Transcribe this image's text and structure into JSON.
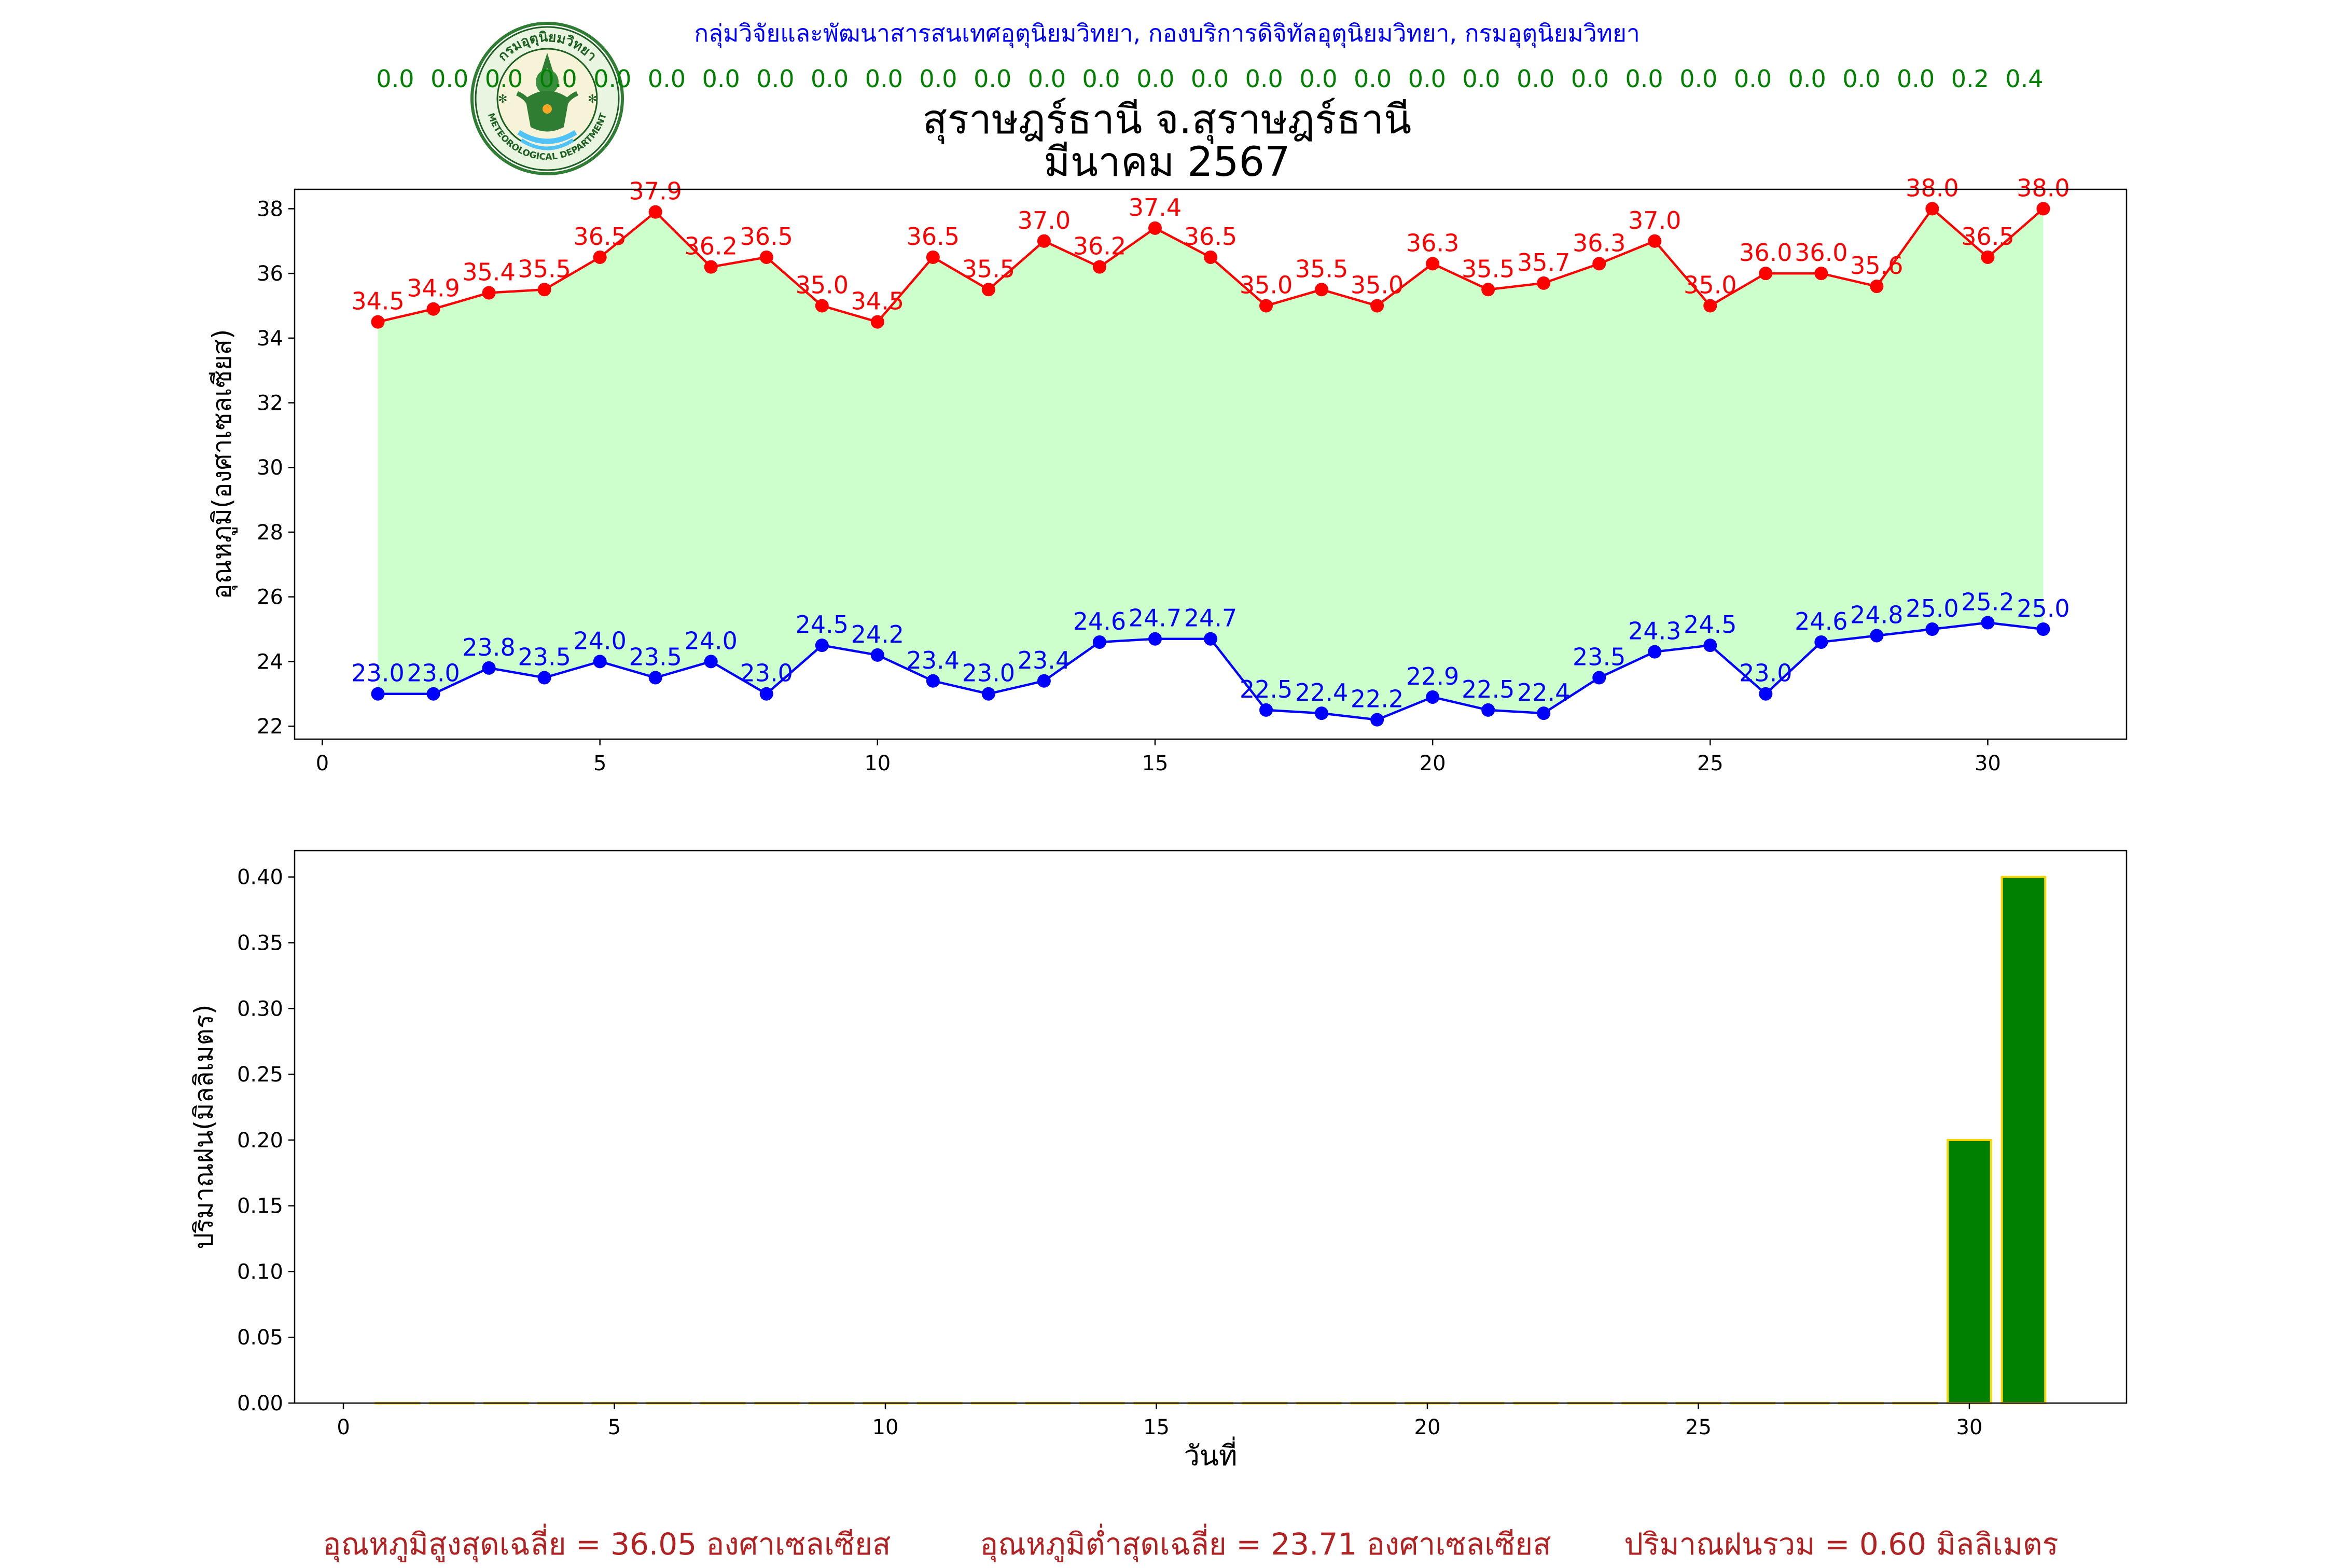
{
  "credit": "กลุ่มวิจัยและพัฒนาสารสนเทศอุตุนิยมวิทยา, กองบริการดิจิทัลอุตุนิยมวิทยา, กรมอุตุนิยมวิทยา",
  "logo": {
    "text_top": "กรมอุตุนิยมวิทยา",
    "text_bottom": "METEOROLOGICAL DEPARTMENT"
  },
  "title": {
    "line1": "สุราษฎร์ธานี จ.สุราษฎร์ธานี",
    "line2": "มีนาคม 2567"
  },
  "colors": {
    "max": "#ff0000",
    "min": "#0000ff",
    "fill": "#ccffcc",
    "bar": "#008000",
    "bar_edge": "#ffd700",
    "rain_row": "#008000",
    "summary": "#b22222"
  },
  "chart_data": [
    {
      "type": "line",
      "ylabel": "อุณหภูมิ(องศาเซลเซียส)",
      "xlabel": "",
      "xlim": [
        -0.5,
        32.5
      ],
      "ylim": [
        21.6,
        38.6
      ],
      "xticks": [
        0,
        5,
        10,
        15,
        20,
        25,
        30
      ],
      "yticks": [
        22,
        24,
        26,
        28,
        30,
        32,
        34,
        36,
        38
      ],
      "x": [
        1,
        2,
        3,
        4,
        5,
        6,
        7,
        8,
        9,
        10,
        11,
        12,
        13,
        14,
        15,
        16,
        17,
        18,
        19,
        20,
        21,
        22,
        23,
        24,
        25,
        26,
        27,
        28,
        29,
        30,
        31
      ],
      "series": [
        {
          "color": "#ff0000",
          "values": [
            34.5,
            34.9,
            35.4,
            35.5,
            36.5,
            37.9,
            36.2,
            36.5,
            35.0,
            34.5,
            36.5,
            35.5,
            37.0,
            36.2,
            37.4,
            36.5,
            35.0,
            35.5,
            35.0,
            36.3,
            35.5,
            35.7,
            36.3,
            37.0,
            35.0,
            36.0,
            36.0,
            35.6,
            38.0,
            36.5,
            38.0
          ]
        },
        {
          "color": "#0000ff",
          "values": [
            23.0,
            23.0,
            23.8,
            23.5,
            24.0,
            23.5,
            24.0,
            23.0,
            24.5,
            24.2,
            23.4,
            23.0,
            23.4,
            24.6,
            24.7,
            24.7,
            22.5,
            22.4,
            22.2,
            22.9,
            22.5,
            22.4,
            23.5,
            24.3,
            24.5,
            23.0,
            24.6,
            24.8,
            25.0,
            25.2,
            25.0
          ]
        }
      ],
      "grid": false
    },
    {
      "type": "bar",
      "ylabel": "ปริมาณฝน(มิลลิเมตร)",
      "xlabel": "วันที่",
      "xlim": [
        -0.9,
        32.9
      ],
      "ylim": [
        0,
        0.42
      ],
      "xticks": [
        0,
        5,
        10,
        15,
        20,
        25,
        30
      ],
      "yticks": [
        "0.00",
        "0.05",
        "0.10",
        "0.15",
        "0.20",
        "0.25",
        "0.30",
        "0.35",
        "0.40"
      ],
      "x": [
        1,
        2,
        3,
        4,
        5,
        6,
        7,
        8,
        9,
        10,
        11,
        12,
        13,
        14,
        15,
        16,
        17,
        18,
        19,
        20,
        21,
        22,
        23,
        24,
        25,
        26,
        27,
        28,
        29,
        30,
        31
      ],
      "values": [
        0,
        0,
        0,
        0,
        0,
        0,
        0,
        0,
        0,
        0,
        0,
        0,
        0,
        0,
        0,
        0,
        0,
        0,
        0,
        0,
        0,
        0,
        0,
        0,
        0,
        0,
        0,
        0,
        0,
        0.2,
        0.4
      ],
      "grid": false
    }
  ],
  "rain_row": [
    "0.0",
    "0.0",
    "0.0",
    "0.0",
    "0.0",
    "0.0",
    "0.0",
    "0.0",
    "0.0",
    "0.0",
    "0.0",
    "0.0",
    "0.0",
    "0.0",
    "0.0",
    "0.0",
    "0.0",
    "0.0",
    "0.0",
    "0.0",
    "0.0",
    "0.0",
    "0.0",
    "0.0",
    "0.0",
    "0.0",
    "0.0",
    "0.0",
    "0.0",
    "0.2",
    "0.4"
  ],
  "summary": {
    "avg_max": "อุณหภูมิสูงสุดเฉลี่ย = 36.05 องศาเซลเซียส",
    "avg_min": "อุณหภูมิต่ำสุดเฉลี่ย = 23.71 องศาเซลเซียส",
    "total_rain": "ปริมาณฝนรวม = 0.60 มิลลิเมตร"
  }
}
